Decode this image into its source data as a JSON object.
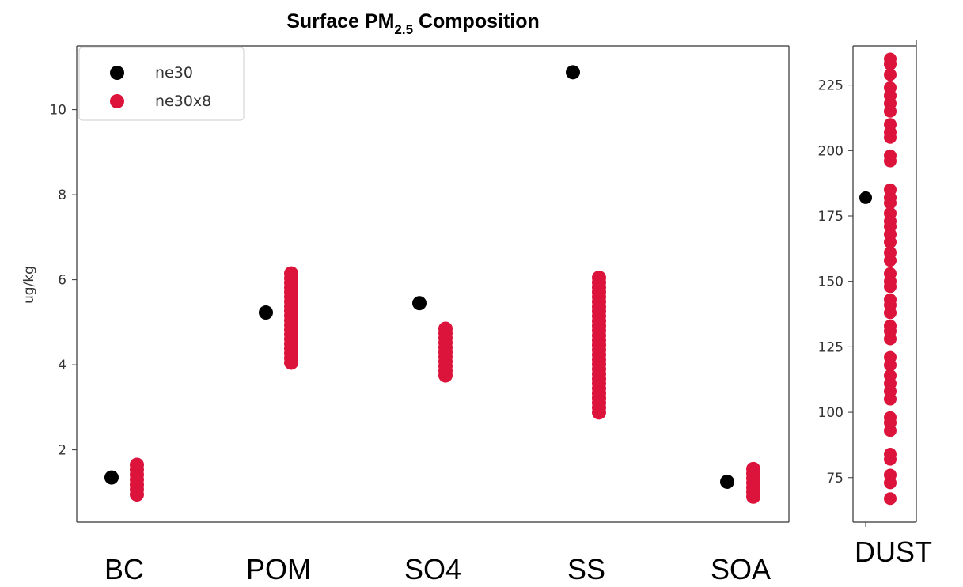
{
  "chart_data": [
    {
      "type": "scatter",
      "title_main": "Surface PM",
      "title_sub": "2.5",
      "title_rest": " Composition",
      "ylabel": "ug/kg",
      "ylim": [
        0.3,
        11.5
      ],
      "yticks": [
        2,
        4,
        6,
        8,
        10
      ],
      "categories": [
        "BC",
        "POM",
        "SO4",
        "SS",
        "SOA"
      ],
      "legend": {
        "placement": "upper-left"
      },
      "series": [
        {
          "name": "ne30",
          "color": "#000000",
          "points": [
            {
              "category": "BC",
              "y": 1.35
            },
            {
              "category": "POM",
              "y": 5.23
            },
            {
              "category": "SO4",
              "y": 5.45
            },
            {
              "category": "SS",
              "y": 10.88
            },
            {
              "category": "SOA",
              "y": 1.25
            }
          ]
        },
        {
          "name": "ne30x8",
          "color": "#dc143c",
          "ranges": [
            {
              "category": "BC",
              "min": 0.95,
              "max": 1.65
            },
            {
              "category": "POM",
              "min": 4.05,
              "max": 6.15
            },
            {
              "category": "SO4",
              "min": 3.75,
              "max": 4.85
            },
            {
              "category": "SS",
              "min": 2.88,
              "max": 6.05
            },
            {
              "category": "SOA",
              "min": 0.9,
              "max": 1.55
            }
          ]
        }
      ]
    },
    {
      "type": "scatter",
      "category": "DUST",
      "ylim": [
        58,
        240
      ],
      "yticks": [
        75,
        100,
        125,
        150,
        175,
        200,
        225
      ],
      "series": [
        {
          "name": "ne30",
          "color": "#000000",
          "values": [
            182
          ]
        },
        {
          "name": "ne30x8",
          "color": "#dc143c",
          "values": [
            67,
            73,
            76,
            82,
            84,
            93,
            96,
            98,
            105,
            108,
            111,
            114,
            118,
            121,
            128,
            131,
            133,
            138,
            141,
            143,
            148,
            150,
            153,
            158,
            161,
            165,
            168,
            171,
            173,
            176,
            180,
            182,
            185,
            196,
            198,
            205,
            207,
            210,
            215,
            218,
            221,
            224,
            229,
            233,
            235
          ]
        }
      ]
    }
  ]
}
